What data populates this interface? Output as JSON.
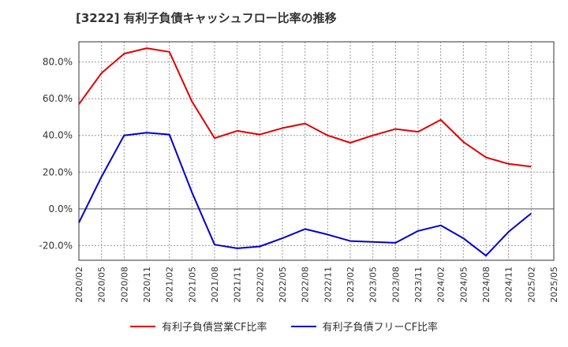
{
  "title": "[3222]  有利子負債キャッシュフロー比率の推移",
  "chart_data": {
    "type": "line",
    "title": "[3222]  有利子負債キャッシュフロー比率の推移",
    "xlabel": "",
    "ylabel": "",
    "ylim": [
      -28,
      91
    ],
    "yticks": [
      -20,
      0,
      20,
      40,
      60,
      80
    ],
    "ytick_labels": [
      "-20.0%",
      "0.0%",
      "20.0%",
      "40.0%",
      "60.0%",
      "80.0%"
    ],
    "x_ticks": [
      "2020/02",
      "2020/05",
      "2020/08",
      "2020/11",
      "2021/02",
      "2021/05",
      "2021/08",
      "2021/11",
      "2022/02",
      "2022/05",
      "2022/08",
      "2022/11",
      "2023/02",
      "2023/05",
      "2023/08",
      "2023/11",
      "2024/02",
      "2024/05",
      "2024/08",
      "2024/11",
      "2025/02",
      "2025/05"
    ],
    "grid": true,
    "legend_position": "bottom",
    "series": [
      {
        "name": "有利子負債営業CF比率",
        "color": "#e00000",
        "x": [
          "2020/02",
          "2020/05",
          "2020/08",
          "2020/11",
          "2021/02",
          "2021/05",
          "2021/08",
          "2021/11",
          "2022/02",
          "2022/05",
          "2022/08",
          "2022/11",
          "2023/02",
          "2023/05",
          "2023/08",
          "2023/11",
          "2024/02",
          "2024/05",
          "2024/08",
          "2024/11",
          "2025/02"
        ],
        "values": [
          57,
          74,
          84.5,
          87.5,
          85.5,
          58.5,
          38.5,
          42.5,
          40.5,
          44,
          46.5,
          40,
          36,
          40,
          43.5,
          42,
          48.5,
          36.5,
          28,
          24.5,
          23
        ]
      },
      {
        "name": "有利子負債フリーCF比率",
        "color": "#0000cc",
        "x": [
          "2020/02",
          "2020/05",
          "2020/08",
          "2020/11",
          "2021/02",
          "2021/05",
          "2021/08",
          "2021/11",
          "2022/02",
          "2022/05",
          "2022/08",
          "2022/11",
          "2023/02",
          "2023/05",
          "2023/08",
          "2023/11",
          "2024/02",
          "2024/05",
          "2024/08",
          "2024/11",
          "2025/02"
        ],
        "values": [
          -7.5,
          17.5,
          40,
          41.5,
          40.5,
          9,
          -19.5,
          -21.5,
          -20.5,
          -16,
          -11,
          -14,
          -17.5,
          -18,
          -18.5,
          -12,
          -9,
          -16,
          -25.5,
          -12.5,
          -2.5
        ]
      }
    ]
  }
}
